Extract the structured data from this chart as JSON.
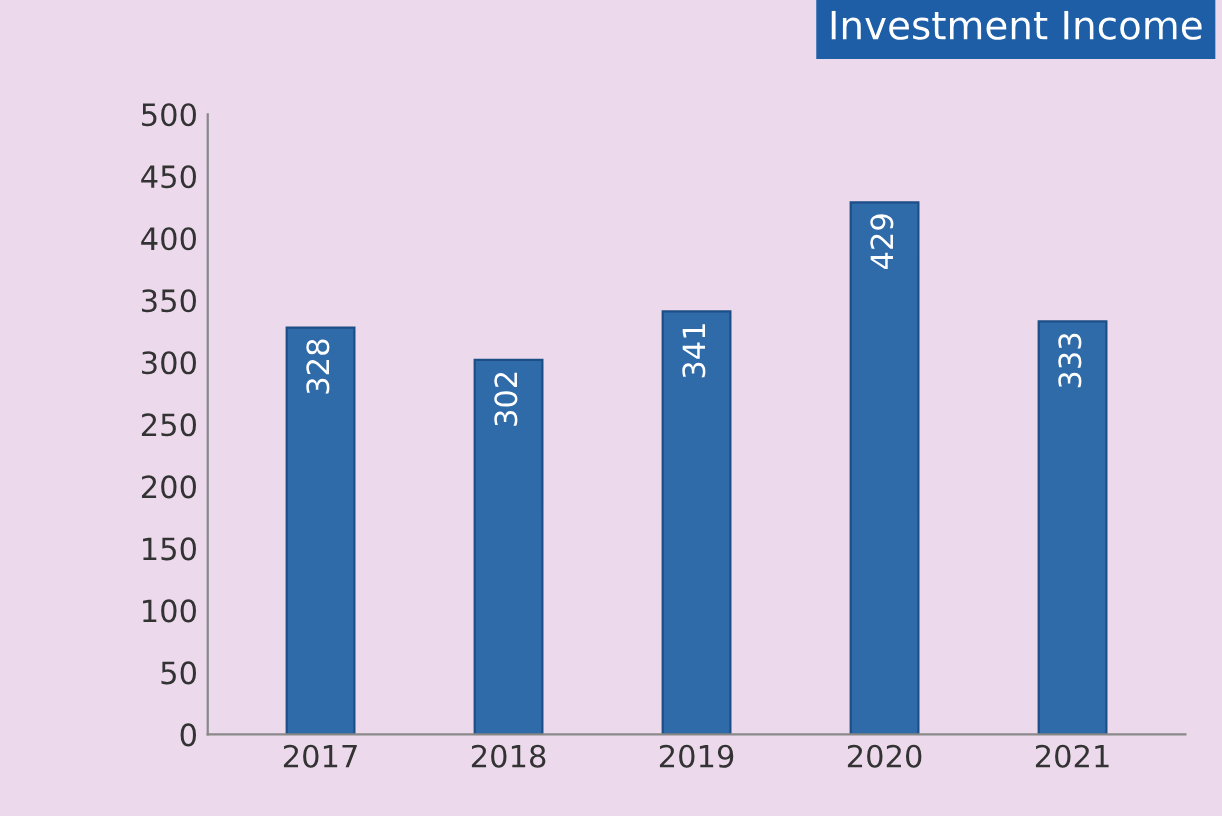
{
  "chart_data": {
    "type": "bar",
    "title": "Investment Income",
    "categories": [
      "2017",
      "2018",
      "2019",
      "2020",
      "2021"
    ],
    "values": [
      328,
      302,
      341,
      429,
      333
    ],
    "color": "#2f6aa9",
    "ylim": [
      0,
      500
    ],
    "yticks": [
      0,
      50,
      100,
      150,
      200,
      250,
      300,
      350,
      400,
      450,
      500
    ],
    "grid": false,
    "data_labels": true
  }
}
